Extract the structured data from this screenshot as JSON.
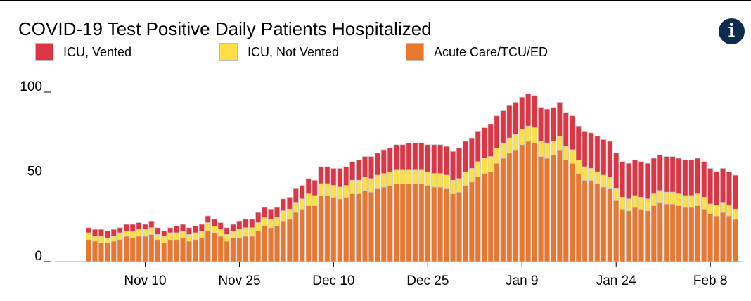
{
  "title": "COVID-19 Test Positive Daily Patients Hospitalized",
  "info_icon": "info-icon",
  "chart_data": {
    "type": "bar",
    "stacked": true,
    "title": "COVID-19 Test Positive Daily Patients Hospitalized",
    "xlabel": "",
    "ylabel": "",
    "ylim": [
      0,
      100
    ],
    "y_ticks": [
      0,
      50,
      100
    ],
    "grid": false,
    "legend": "top",
    "x_start": "2020-11-01",
    "x_ticks": [
      {
        "label": "Nov 10",
        "date": "2020-11-10"
      },
      {
        "label": "Nov 25",
        "date": "2020-11-25"
      },
      {
        "label": "Dec 10",
        "date": "2020-12-10"
      },
      {
        "label": "Dec 25",
        "date": "2020-12-25"
      },
      {
        "label": "Jan 9",
        "date": "2021-01-09"
      },
      {
        "label": "Jan 24",
        "date": "2021-01-24"
      },
      {
        "label": "Feb 8",
        "date": "2021-02-08"
      }
    ],
    "series": [
      {
        "name": "ICU, Vented",
        "color": "#dc3545",
        "values": [
          3,
          4,
          4,
          4,
          4,
          3,
          4,
          4,
          4,
          3,
          4,
          4,
          3,
          3,
          4,
          4,
          4,
          4,
          4,
          4,
          4,
          4,
          4,
          4,
          5,
          5,
          5,
          6,
          6,
          6,
          6,
          7,
          7,
          8,
          8,
          9,
          9,
          10,
          10,
          10,
          11,
          11,
          11,
          12,
          12,
          13,
          13,
          14,
          14,
          15,
          15,
          16,
          16,
          16,
          16,
          17,
          17,
          17,
          17,
          18,
          18,
          18,
          18,
          18,
          19,
          19,
          19,
          19,
          19,
          19,
          19,
          19,
          20,
          20,
          20,
          20,
          20,
          20,
          20,
          21,
          21,
          21,
          21,
          21,
          21,
          21,
          21,
          21,
          21,
          21,
          21,
          21,
          21,
          21,
          21,
          21,
          21,
          21,
          21,
          21,
          20,
          20,
          20,
          20
        ]
      },
      {
        "name": "ICU, Not Vented",
        "color": "#fde047",
        "values": [
          4,
          3,
          4,
          3,
          3,
          4,
          3,
          4,
          4,
          4,
          4,
          3,
          4,
          4,
          4,
          4,
          4,
          4,
          4,
          5,
          4,
          4,
          4,
          4,
          5,
          5,
          5,
          5,
          5,
          5,
          5,
          6,
          6,
          6,
          6,
          7,
          6,
          7,
          7,
          7,
          7,
          7,
          8,
          8,
          8,
          8,
          8,
          8,
          8,
          8,
          8,
          8,
          8,
          8,
          8,
          8,
          8,
          8,
          8,
          8,
          8,
          8,
          9,
          9,
          9,
          9,
          9,
          9,
          9,
          9,
          9,
          9,
          9,
          9,
          8,
          8,
          8,
          8,
          8,
          8,
          7,
          7,
          7,
          7,
          7,
          7,
          7,
          7,
          7,
          7,
          7,
          7,
          7,
          7,
          7,
          7,
          7,
          7,
          7,
          6,
          6,
          6,
          6,
          6
        ]
      },
      {
        "name": "Acute Care/TCU/ED",
        "color": "#e8782f",
        "values": [
          13,
          12,
          11,
          11,
          12,
          13,
          15,
          14,
          15,
          15,
          16,
          13,
          11,
          13,
          13,
          14,
          12,
          13,
          14,
          18,
          17,
          15,
          12,
          14,
          14,
          15,
          15,
          18,
          21,
          20,
          21,
          24,
          25,
          29,
          31,
          33,
          33,
          39,
          39,
          38,
          37,
          38,
          40,
          40,
          42,
          41,
          43,
          44,
          45,
          46,
          46,
          46,
          46,
          46,
          45,
          44,
          44,
          43,
          40,
          41,
          45,
          47,
          50,
          52,
          53,
          58,
          61,
          64,
          66,
          69,
          71,
          70,
          62,
          61,
          63,
          66,
          60,
          58,
          52,
          48,
          48,
          46,
          44,
          43,
          36,
          31,
          30,
          32,
          31,
          30,
          33,
          35,
          34,
          34,
          33,
          32,
          32,
          33,
          31,
          28,
          27,
          29,
          27,
          25
        ]
      }
    ]
  }
}
